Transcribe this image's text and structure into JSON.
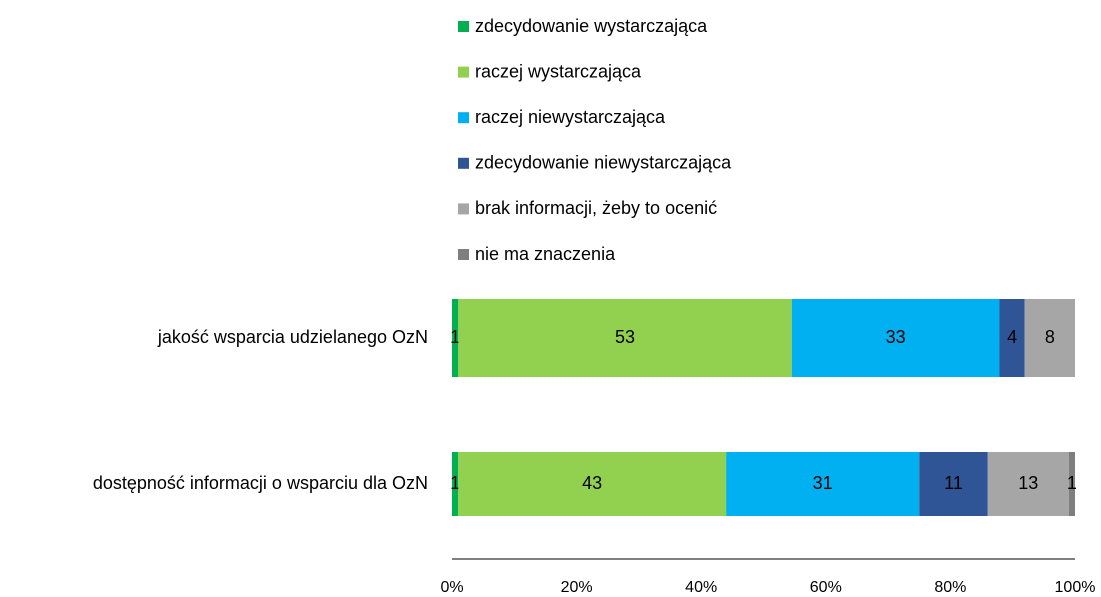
{
  "chart_data": {
    "type": "bar",
    "orientation": "horizontal",
    "stacking": "percent",
    "categories": [
      "jakość wsparcia udzielanego OzN",
      "dostępność informacji o wsparciu dla OzN"
    ],
    "series": [
      {
        "name": "zdecydowanie wystarczająca",
        "color": "#00b050",
        "label_color": "#000000",
        "values": [
          1,
          1
        ]
      },
      {
        "name": "raczej wystarczająca",
        "color": "#92d050",
        "label_color": "#000000",
        "values": [
          53,
          43
        ]
      },
      {
        "name": "raczej niewystarczająca",
        "color": "#00b0f0",
        "label_color": "#000000",
        "values": [
          33,
          31
        ]
      },
      {
        "name": "zdecydowanie niewystarczająca",
        "color": "#2f5597",
        "label_color": "#ffffff",
        "values": [
          4,
          11
        ]
      },
      {
        "name": "brak informacji, żeby to ocenić",
        "color": "#a6a6a6",
        "label_color": "#000000",
        "values": [
          8,
          13
        ]
      },
      {
        "name": "nie ma znaczenia",
        "color": "#7f7f7f",
        "label_color": "#ffffff",
        "values": [
          null,
          1
        ]
      }
    ],
    "xlim": [
      0,
      100
    ],
    "xticks": [
      {
        "value": 0,
        "label": "0%"
      },
      {
        "value": 20,
        "label": "20%"
      },
      {
        "value": 40,
        "label": "40%"
      },
      {
        "value": 60,
        "label": "60%"
      },
      {
        "value": 80,
        "label": "80%"
      },
      {
        "value": 100,
        "label": "100%"
      }
    ],
    "legend": "top"
  }
}
